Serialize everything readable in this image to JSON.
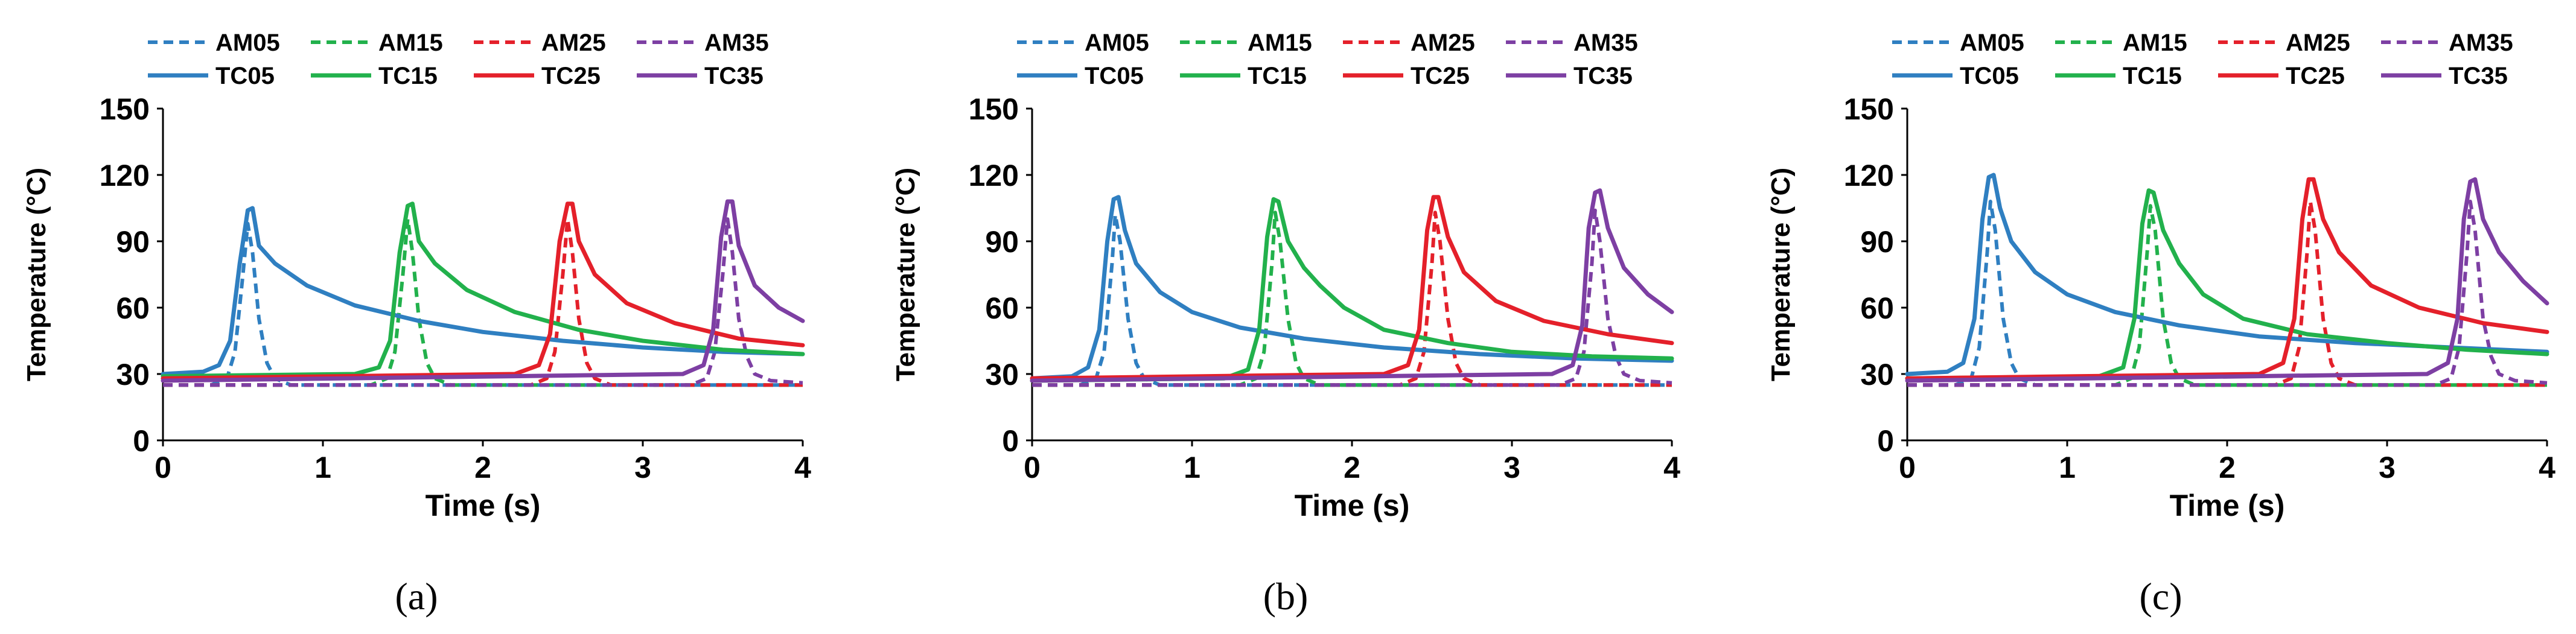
{
  "figure": {
    "panel_labels": [
      "(a)",
      "(b)",
      "(c)"
    ],
    "colors": {
      "AM05": "#2f7fc1",
      "AM15": "#22b14c",
      "AM25": "#e4202a",
      "AM35": "#7d3fa3",
      "TC05": "#2f7fc1",
      "TC15": "#22b14c",
      "TC25": "#e4202a",
      "TC35": "#7d3fa3"
    }
  },
  "chart_data": [
    {
      "type": "line",
      "panel": "(a)",
      "xlabel": "Time (s)",
      "ylabel": "Temperature (°C)",
      "xlim": [
        0,
        4
      ],
      "ylim": [
        0,
        150
      ],
      "xticks": [
        0,
        1,
        2,
        3,
        4
      ],
      "yticks": [
        0,
        30,
        60,
        90,
        120,
        150
      ],
      "legend": [
        "AM05",
        "AM15",
        "AM25",
        "AM35",
        "TC05",
        "TC15",
        "TC25",
        "TC35"
      ],
      "series": [
        {
          "name": "AM05",
          "style": "dashed",
          "x": [
            0,
            0.3,
            0.4,
            0.45,
            0.5,
            0.53,
            0.56,
            0.6,
            0.65,
            0.7,
            0.8,
            4
          ],
          "y": [
            25,
            25,
            28,
            40,
            75,
            98,
            85,
            55,
            35,
            28,
            25,
            25
          ]
        },
        {
          "name": "AM15",
          "style": "dashed",
          "x": [
            0,
            1.3,
            1.4,
            1.45,
            1.5,
            1.53,
            1.56,
            1.6,
            1.65,
            1.7,
            1.8,
            4
          ],
          "y": [
            25,
            25,
            28,
            40,
            75,
            100,
            85,
            55,
            35,
            28,
            25,
            25
          ]
        },
        {
          "name": "AM25",
          "style": "dashed",
          "x": [
            0,
            2.3,
            2.4,
            2.45,
            2.5,
            2.53,
            2.56,
            2.6,
            2.65,
            2.7,
            2.8,
            4
          ],
          "y": [
            25,
            25,
            28,
            40,
            75,
            100,
            85,
            55,
            35,
            28,
            25,
            25
          ]
        },
        {
          "name": "AM35",
          "style": "dashed",
          "x": [
            0,
            3.3,
            3.4,
            3.45,
            3.5,
            3.53,
            3.56,
            3.6,
            3.65,
            3.7,
            3.8,
            4
          ],
          "y": [
            25,
            25,
            28,
            40,
            75,
            100,
            85,
            55,
            38,
            30,
            27,
            26
          ]
        },
        {
          "name": "TC05",
          "style": "solid",
          "x": [
            0,
            0.25,
            0.35,
            0.42,
            0.48,
            0.53,
            0.56,
            0.6,
            0.7,
            0.9,
            1.2,
            1.6,
            2,
            2.5,
            3,
            3.5,
            4
          ],
          "y": [
            30,
            31,
            34,
            45,
            80,
            104,
            105,
            88,
            80,
            70,
            61,
            54,
            49,
            45,
            42,
            40,
            39
          ]
        },
        {
          "name": "TC15",
          "style": "solid",
          "x": [
            0,
            1.2,
            1.35,
            1.42,
            1.48,
            1.53,
            1.56,
            1.6,
            1.7,
            1.9,
            2.2,
            2.6,
            3,
            3.5,
            4
          ],
          "y": [
            29,
            30,
            33,
            45,
            85,
            106,
            107,
            90,
            80,
            68,
            58,
            50,
            45,
            41,
            39
          ]
        },
        {
          "name": "TC25",
          "style": "solid",
          "x": [
            0,
            2.2,
            2.35,
            2.42,
            2.48,
            2.53,
            2.56,
            2.6,
            2.7,
            2.9,
            3.2,
            3.6,
            4
          ],
          "y": [
            28,
            30,
            34,
            48,
            90,
            107,
            107,
            90,
            75,
            62,
            53,
            46,
            43
          ]
        },
        {
          "name": "TC35",
          "style": "solid",
          "x": [
            0,
            3.25,
            3.38,
            3.44,
            3.49,
            3.53,
            3.56,
            3.6,
            3.7,
            3.85,
            4
          ],
          "y": [
            27,
            30,
            34,
            50,
            92,
            108,
            108,
            88,
            70,
            60,
            54
          ]
        }
      ]
    },
    {
      "type": "line",
      "panel": "(b)",
      "xlabel": "Time (s)",
      "ylabel": "Temperature (°C)",
      "xlim": [
        0,
        4
      ],
      "ylim": [
        0,
        150
      ],
      "xticks": [
        0,
        1,
        2,
        3,
        4
      ],
      "yticks": [
        0,
        30,
        60,
        90,
        120,
        150
      ],
      "legend": [
        "AM05",
        "AM15",
        "AM25",
        "AM35",
        "TC05",
        "TC15",
        "TC25",
        "TC35"
      ],
      "series": [
        {
          "name": "AM05",
          "style": "dashed",
          "x": [
            0,
            0.3,
            0.4,
            0.45,
            0.5,
            0.52,
            0.55,
            0.6,
            0.65,
            0.7,
            0.8,
            4
          ],
          "y": [
            25,
            25,
            28,
            40,
            80,
            102,
            90,
            55,
            35,
            28,
            25,
            25
          ]
        },
        {
          "name": "AM15",
          "style": "dashed",
          "x": [
            0,
            1.3,
            1.4,
            1.45,
            1.5,
            1.52,
            1.55,
            1.6,
            1.65,
            1.7,
            1.8,
            4
          ],
          "y": [
            25,
            25,
            28,
            40,
            80,
            103,
            90,
            55,
            35,
            28,
            25,
            25
          ]
        },
        {
          "name": "AM25",
          "style": "dashed",
          "x": [
            0,
            2.3,
            2.4,
            2.45,
            2.5,
            2.52,
            2.55,
            2.6,
            2.65,
            2.7,
            2.8,
            4
          ],
          "y": [
            25,
            25,
            28,
            40,
            80,
            103,
            90,
            55,
            35,
            28,
            25,
            25
          ]
        },
        {
          "name": "AM35",
          "style": "dashed",
          "x": [
            0,
            3.3,
            3.4,
            3.45,
            3.5,
            3.52,
            3.55,
            3.6,
            3.65,
            3.7,
            3.8,
            4
          ],
          "y": [
            25,
            25,
            28,
            40,
            80,
            104,
            90,
            55,
            38,
            30,
            27,
            26
          ]
        },
        {
          "name": "TC05",
          "style": "solid",
          "x": [
            0,
            0.25,
            0.35,
            0.42,
            0.47,
            0.51,
            0.54,
            0.58,
            0.65,
            0.8,
            1,
            1.3,
            1.7,
            2.2,
            2.8,
            3.4,
            4
          ],
          "y": [
            28,
            29,
            33,
            50,
            90,
            109,
            110,
            95,
            80,
            67,
            58,
            51,
            46,
            42,
            39,
            37,
            36
          ]
        },
        {
          "name": "TC15",
          "style": "solid",
          "x": [
            0,
            1.2,
            1.35,
            1.42,
            1.47,
            1.51,
            1.54,
            1.6,
            1.7,
            1.8,
            1.95,
            2.2,
            2.6,
            3,
            3.5,
            4
          ],
          "y": [
            27,
            28,
            32,
            50,
            92,
            109,
            108,
            90,
            78,
            70,
            60,
            50,
            44,
            40,
            38,
            37
          ]
        },
        {
          "name": "TC25",
          "style": "solid",
          "x": [
            0,
            2.2,
            2.35,
            2.42,
            2.47,
            2.51,
            2.54,
            2.6,
            2.7,
            2.9,
            3.2,
            3.6,
            4
          ],
          "y": [
            28,
            30,
            34,
            50,
            95,
            110,
            110,
            92,
            76,
            63,
            54,
            48,
            44
          ]
        },
        {
          "name": "TC35",
          "style": "solid",
          "x": [
            0,
            3.25,
            3.38,
            3.44,
            3.48,
            3.52,
            3.55,
            3.6,
            3.7,
            3.85,
            4
          ],
          "y": [
            27,
            30,
            34,
            52,
            96,
            112,
            113,
            96,
            78,
            66,
            58
          ]
        }
      ]
    },
    {
      "type": "line",
      "panel": "(c)",
      "xlabel": "Time (s)",
      "ylabel": "Temperature (°C)",
      "xlim": [
        0,
        4
      ],
      "ylim": [
        0,
        150
      ],
      "xticks": [
        0,
        1,
        2,
        3,
        4
      ],
      "yticks": [
        0,
        30,
        60,
        90,
        120,
        150
      ],
      "legend": [
        "AM05",
        "AM15",
        "AM25",
        "AM35",
        "TC05",
        "TC15",
        "TC25",
        "TC35"
      ],
      "series": [
        {
          "name": "AM05",
          "style": "dashed",
          "x": [
            0,
            0.3,
            0.4,
            0.45,
            0.5,
            0.52,
            0.55,
            0.6,
            0.65,
            0.7,
            0.8,
            4
          ],
          "y": [
            25,
            25,
            28,
            42,
            85,
            108,
            95,
            55,
            35,
            28,
            25,
            25
          ]
        },
        {
          "name": "AM15",
          "style": "dashed",
          "x": [
            0,
            1.3,
            1.4,
            1.45,
            1.5,
            1.52,
            1.55,
            1.6,
            1.65,
            1.7,
            1.8,
            4
          ],
          "y": [
            25,
            25,
            28,
            42,
            85,
            106,
            95,
            55,
            35,
            28,
            25,
            25
          ]
        },
        {
          "name": "AM25",
          "style": "dashed",
          "x": [
            0,
            2.3,
            2.4,
            2.45,
            2.5,
            2.52,
            2.55,
            2.6,
            2.65,
            2.7,
            2.8,
            4
          ],
          "y": [
            25,
            25,
            28,
            42,
            85,
            108,
            95,
            55,
            35,
            28,
            25,
            25
          ]
        },
        {
          "name": "AM35",
          "style": "dashed",
          "x": [
            0,
            3.3,
            3.4,
            3.45,
            3.5,
            3.52,
            3.55,
            3.6,
            3.65,
            3.7,
            3.8,
            4
          ],
          "y": [
            25,
            25,
            28,
            42,
            85,
            108,
            95,
            55,
            38,
            30,
            27,
            26
          ]
        },
        {
          "name": "TC05",
          "style": "solid",
          "x": [
            0,
            0.25,
            0.35,
            0.42,
            0.47,
            0.51,
            0.54,
            0.58,
            0.65,
            0.8,
            1,
            1.3,
            1.7,
            2.2,
            2.8,
            3.4,
            4
          ],
          "y": [
            30,
            31,
            35,
            55,
            100,
            119,
            120,
            105,
            90,
            76,
            66,
            58,
            52,
            47,
            44,
            42,
            40
          ]
        },
        {
          "name": "TC15",
          "style": "solid",
          "x": [
            0,
            1.2,
            1.35,
            1.42,
            1.47,
            1.51,
            1.54,
            1.6,
            1.7,
            1.85,
            2.1,
            2.5,
            3,
            3.5,
            4
          ],
          "y": [
            28,
            29,
            33,
            55,
            98,
            113,
            112,
            95,
            80,
            66,
            55,
            48,
            44,
            41,
            39
          ]
        },
        {
          "name": "TC25",
          "style": "solid",
          "x": [
            0,
            2.2,
            2.35,
            2.42,
            2.47,
            2.51,
            2.54,
            2.6,
            2.7,
            2.9,
            3.2,
            3.6,
            4
          ],
          "y": [
            28,
            30,
            35,
            55,
            100,
            118,
            118,
            100,
            85,
            70,
            60,
            53,
            49
          ]
        },
        {
          "name": "TC35",
          "style": "solid",
          "x": [
            0,
            3.25,
            3.38,
            3.44,
            3.48,
            3.52,
            3.55,
            3.6,
            3.7,
            3.85,
            4
          ],
          "y": [
            27,
            30,
            35,
            55,
            100,
            117,
            118,
            100,
            85,
            72,
            62
          ]
        }
      ]
    }
  ]
}
